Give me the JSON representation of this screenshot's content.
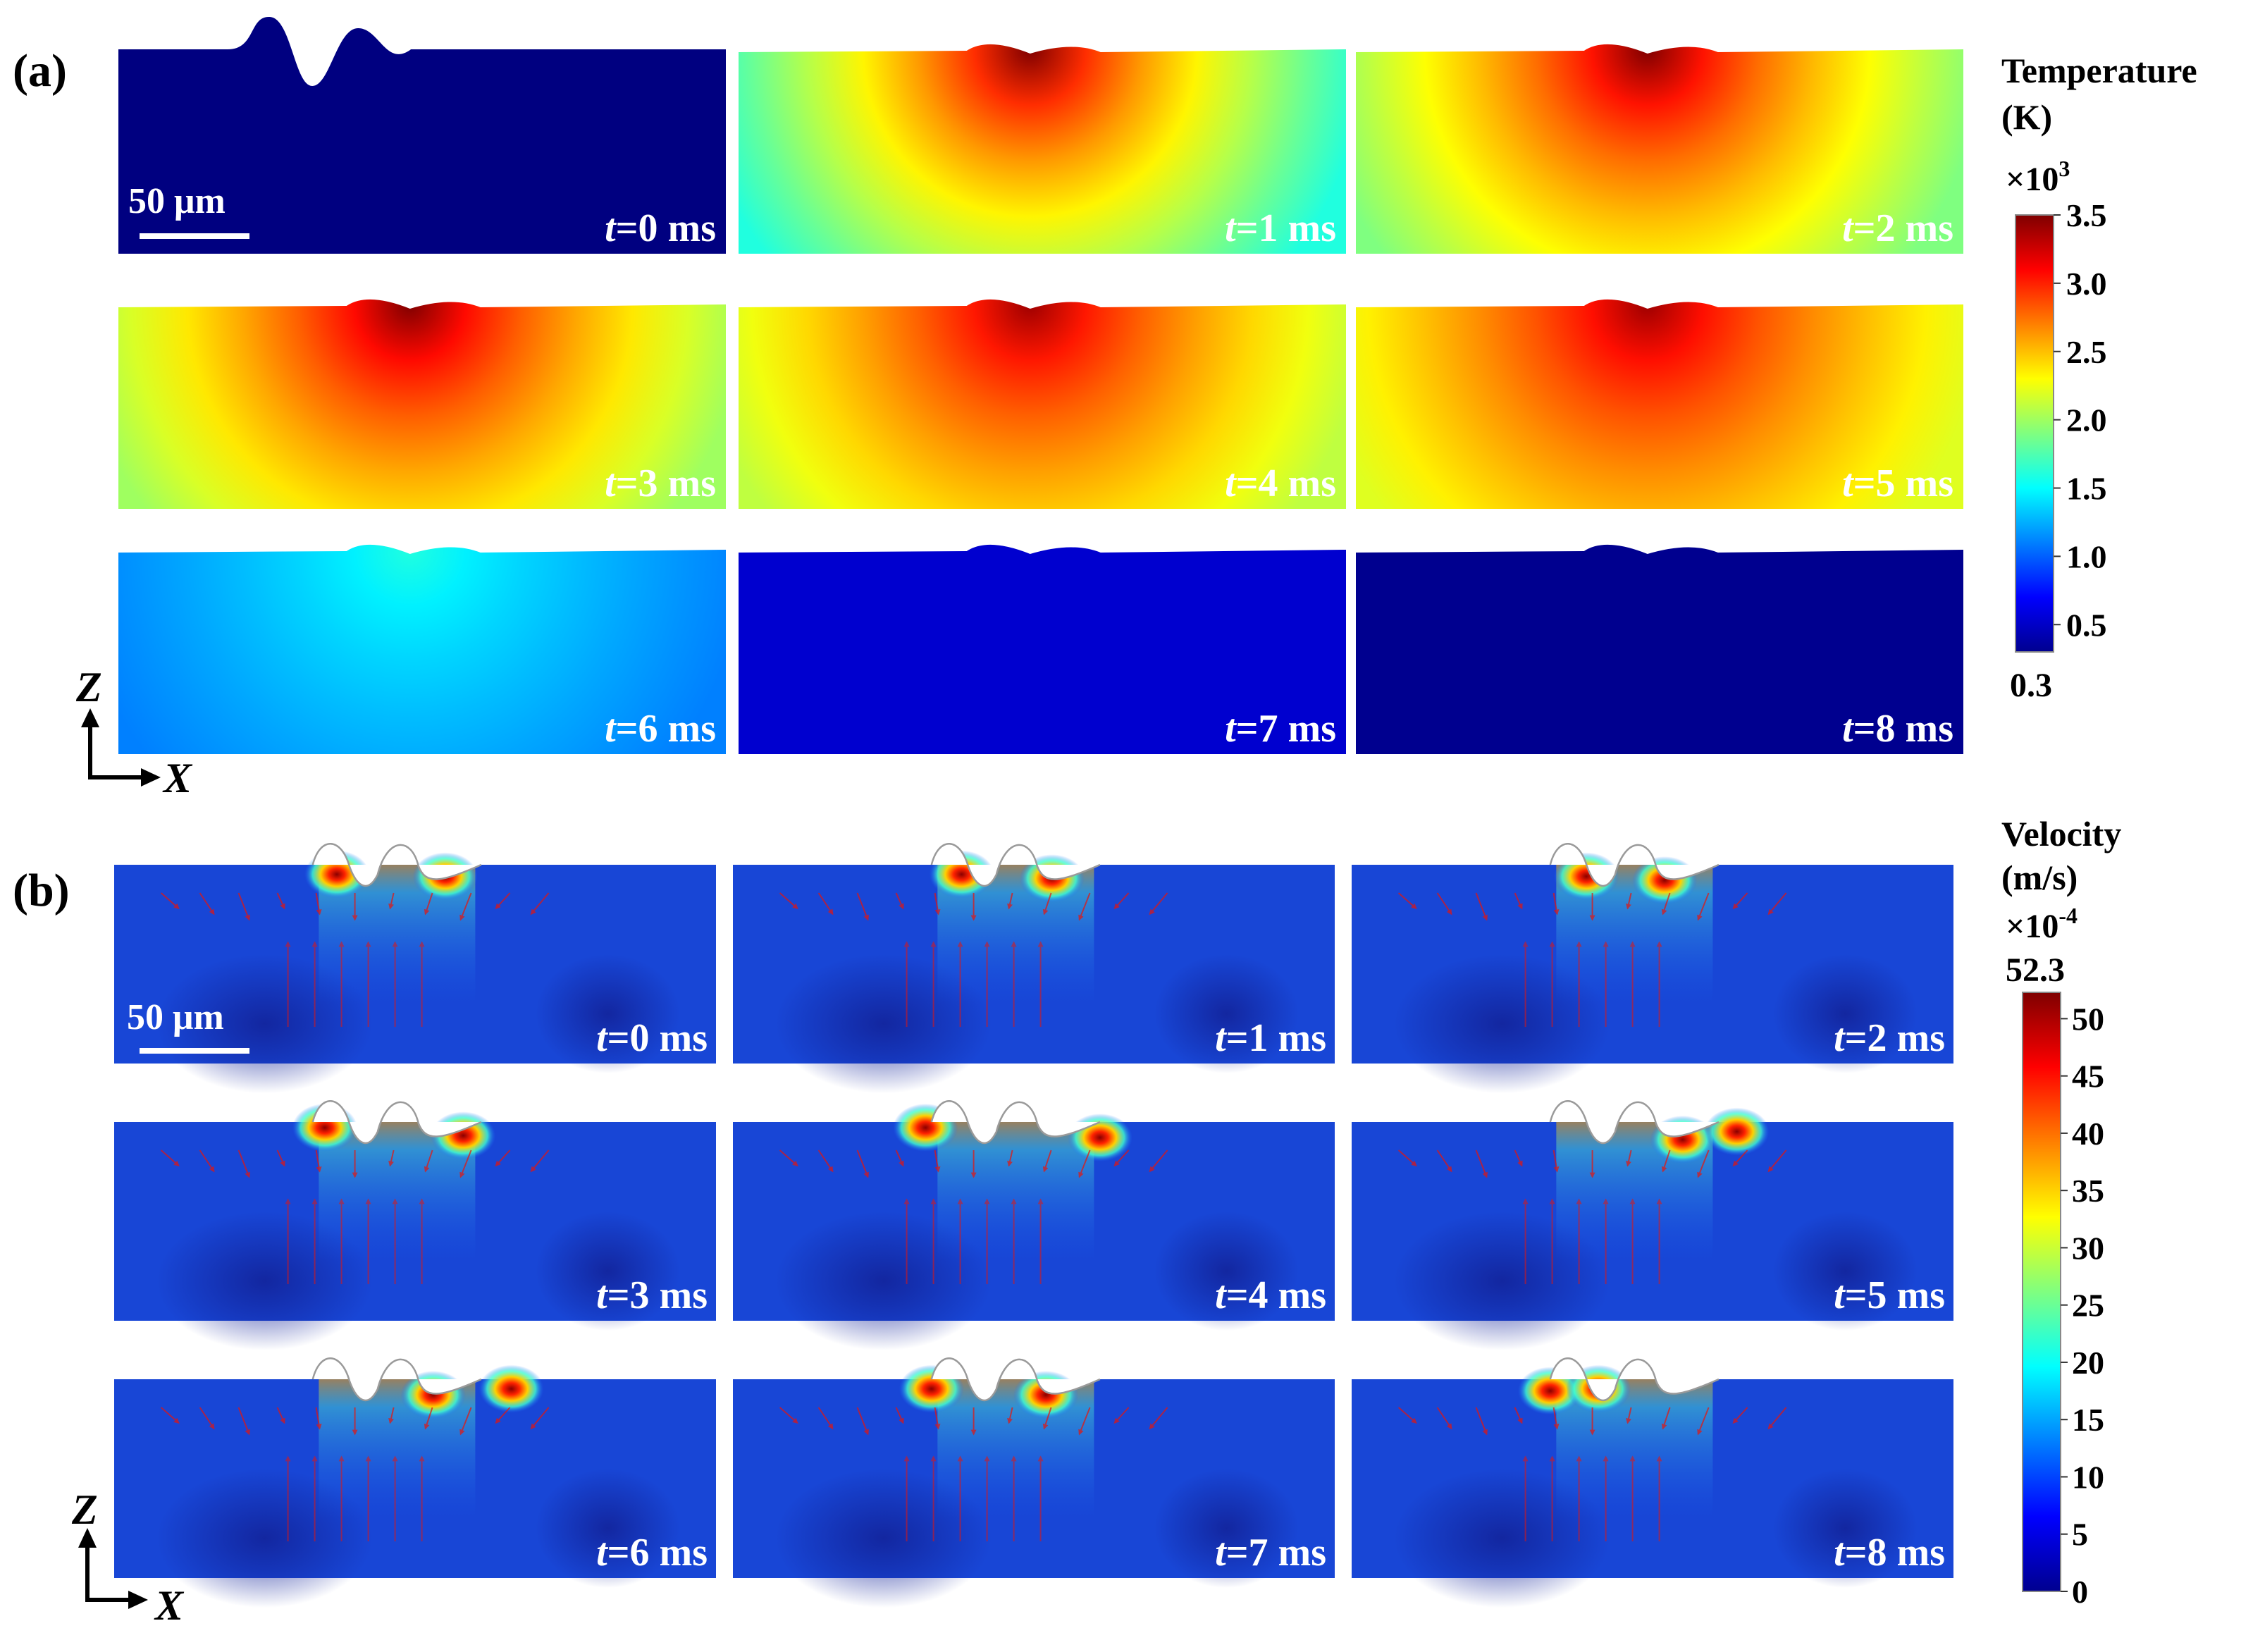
{
  "panel_a": {
    "label": "(a)",
    "scale_bar": "50 μm",
    "axis_z": "Z",
    "axis_x": "X",
    "colorbar": {
      "title_line1": "Temperature",
      "title_line2": "(K)",
      "multiplier_base": "×10",
      "multiplier_exp": "3",
      "ticks": [
        "3.5",
        "3.0",
        "2.5",
        "2.0",
        "1.5",
        "1.0",
        "0.5"
      ],
      "min_label": "0.3",
      "min_value": 0.3,
      "max_value": 3.5
    },
    "frames": [
      {
        "t": "t",
        "rest": "=0 ms",
        "peak": 0.3,
        "bg": 0.3
      },
      {
        "t": "t",
        "rest": "=1 ms",
        "peak": 3.5,
        "bg": 1.6
      },
      {
        "t": "t",
        "rest": "=2 ms",
        "peak": 3.5,
        "bg": 1.9
      },
      {
        "t": "t",
        "rest": "=3 ms",
        "peak": 3.5,
        "bg": 2.0
      },
      {
        "t": "t",
        "rest": "=4 ms",
        "peak": 3.4,
        "bg": 2.1
      },
      {
        "t": "t",
        "rest": "=5 ms",
        "peak": 3.4,
        "bg": 2.2
      },
      {
        "t": "t",
        "rest": "=6 ms",
        "peak": 1.6,
        "bg": 1.1
      },
      {
        "t": "t",
        "rest": "=7 ms",
        "peak": 0.55,
        "bg": 0.55
      },
      {
        "t": "t",
        "rest": "=8 ms",
        "peak": 0.35,
        "bg": 0.35
      }
    ]
  },
  "panel_b": {
    "label": "(b)",
    "scale_bar": "50 μm",
    "axis_z": "Z",
    "axis_x": "X",
    "colorbar": {
      "title_line1": "Velocity",
      "title_line2": "(m/s)",
      "multiplier_base": "×10",
      "multiplier_exp": "-4",
      "max_label": "52.3",
      "ticks": [
        "50",
        "45",
        "40",
        "35",
        "30",
        "25",
        "20",
        "15",
        "10",
        "5",
        "0"
      ],
      "min_value": 0,
      "max_value": 52.3
    },
    "frames": [
      {
        "t": "t",
        "rest": "=0 ms"
      },
      {
        "t": "t",
        "rest": "=1 ms"
      },
      {
        "t": "t",
        "rest": "=2 ms"
      },
      {
        "t": "t",
        "rest": "=3 ms"
      },
      {
        "t": "t",
        "rest": "=4 ms"
      },
      {
        "t": "t",
        "rest": "=5 ms"
      },
      {
        "t": "t",
        "rest": "=6 ms"
      },
      {
        "t": "t",
        "rest": "=7 ms"
      },
      {
        "t": "t",
        "rest": "=8 ms"
      }
    ]
  }
}
